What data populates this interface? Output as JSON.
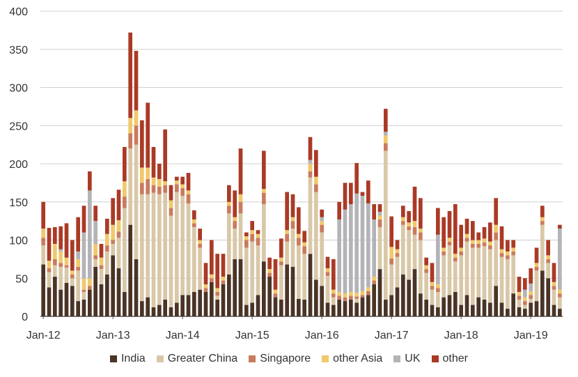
{
  "chart_data": {
    "type": "bar",
    "stacked": true,
    "ylim": [
      0,
      400
    ],
    "y_ticks": [
      "0",
      "50",
      "100",
      "150",
      "200",
      "250",
      "300",
      "350",
      "400"
    ],
    "x_tick_labels": [
      "Jan-12",
      "Jan-13",
      "Jan-14",
      "Jan-15",
      "Jan-16",
      "Jan-17",
      "Jan-18",
      "Jan-19"
    ],
    "grid": "horizontal",
    "legend_position": "bottom",
    "series": [
      {
        "name": "India",
        "color": "#4a3426"
      },
      {
        "name": "Greater China",
        "color": "#d9c8a8"
      },
      {
        "name": "Singapore",
        "color": "#c97b5f"
      },
      {
        "name": "other Asia",
        "color": "#f0c96a"
      },
      {
        "name": "UK",
        "color": "#b4b4b8"
      },
      {
        "name": "other",
        "color": "#aa3a26"
      }
    ],
    "months": [
      [
        68,
        25,
        10,
        12,
        0,
        35
      ],
      [
        38,
        20,
        5,
        10,
        0,
        43
      ],
      [
        52,
        15,
        8,
        20,
        0,
        22
      ],
      [
        35,
        30,
        5,
        15,
        3,
        30
      ],
      [
        44,
        20,
        3,
        10,
        0,
        45
      ],
      [
        40,
        10,
        5,
        5,
        0,
        40
      ],
      [
        20,
        40,
        5,
        10,
        10,
        45
      ],
      [
        22,
        10,
        3,
        15,
        60,
        35
      ],
      [
        35,
        0,
        5,
        10,
        115,
        25
      ],
      [
        65,
        10,
        5,
        15,
        30,
        20
      ],
      [
        42,
        20,
        5,
        10,
        0,
        18
      ],
      [
        55,
        30,
        8,
        15,
        0,
        20
      ],
      [
        80,
        15,
        5,
        20,
        0,
        35
      ],
      [
        63,
        40,
        8,
        15,
        0,
        40
      ],
      [
        32,
        110,
        15,
        20,
        0,
        45
      ],
      [
        120,
        100,
        20,
        20,
        0,
        112
      ],
      [
        75,
        150,
        25,
        20,
        0,
        78
      ],
      [
        20,
        140,
        15,
        20,
        0,
        62
      ],
      [
        25,
        135,
        20,
        15,
        0,
        85
      ],
      [
        12,
        150,
        10,
        10,
        0,
        40
      ],
      [
        15,
        145,
        10,
        10,
        0,
        20
      ],
      [
        22,
        140,
        10,
        5,
        0,
        68
      ],
      [
        12,
        120,
        10,
        10,
        0,
        20
      ],
      [
        18,
        145,
        10,
        5,
        0,
        5
      ],
      [
        28,
        130,
        10,
        5,
        0,
        10
      ],
      [
        28,
        120,
        12,
        5,
        0,
        23
      ],
      [
        32,
        85,
        5,
        5,
        0,
        12
      ],
      [
        35,
        55,
        5,
        5,
        0,
        15
      ],
      [
        32,
        0,
        5,
        5,
        0,
        28
      ],
      [
        45,
        0,
        5,
        5,
        0,
        45
      ],
      [
        22,
        5,
        5,
        5,
        0,
        45
      ],
      [
        42,
        0,
        5,
        5,
        0,
        30
      ],
      [
        55,
        80,
        10,
        5,
        0,
        22
      ],
      [
        75,
        40,
        10,
        5,
        0,
        35
      ],
      [
        75,
        60,
        15,
        10,
        0,
        60
      ],
      [
        15,
        75,
        10,
        5,
        0,
        5
      ],
      [
        18,
        80,
        10,
        5,
        0,
        12
      ],
      [
        28,
        65,
        10,
        5,
        0,
        5
      ],
      [
        72,
        75,
        15,
        5,
        0,
        50
      ],
      [
        52,
        0,
        5,
        5,
        0,
        15
      ],
      [
        25,
        0,
        5,
        5,
        0,
        40
      ],
      [
        22,
        45,
        5,
        5,
        0,
        25
      ],
      [
        68,
        30,
        10,
        5,
        0,
        50
      ],
      [
        65,
        50,
        10,
        5,
        0,
        30
      ],
      [
        23,
        70,
        10,
        5,
        0,
        35
      ],
      [
        22,
        60,
        10,
        5,
        0,
        15
      ],
      [
        82,
        100,
        8,
        10,
        5,
        30
      ],
      [
        48,
        115,
        10,
        10,
        0,
        35
      ],
      [
        40,
        70,
        10,
        5,
        5,
        10
      ],
      [
        18,
        35,
        5,
        5,
        0,
        15
      ],
      [
        15,
        10,
        5,
        5,
        0,
        40
      ],
      [
        22,
        0,
        5,
        5,
        95,
        23
      ],
      [
        20,
        0,
        5,
        5,
        110,
        35
      ],
      [
        22,
        0,
        5,
        5,
        115,
        28
      ],
      [
        18,
        5,
        3,
        5,
        130,
        40
      ],
      [
        25,
        0,
        3,
        5,
        125,
        5
      ],
      [
        28,
        0,
        5,
        5,
        110,
        30
      ],
      [
        42,
        0,
        5,
        5,
        75,
        20
      ],
      [
        62,
        55,
        10,
        5,
        5,
        10
      ],
      [
        22,
        195,
        10,
        10,
        5,
        30
      ],
      [
        28,
        40,
        8,
        15,
        0,
        40
      ],
      [
        38,
        40,
        5,
        5,
        0,
        12
      ],
      [
        55,
        65,
        5,
        5,
        0,
        15
      ],
      [
        48,
        65,
        5,
        5,
        0,
        15
      ],
      [
        62,
        45,
        10,
        8,
        0,
        45
      ],
      [
        30,
        70,
        10,
        5,
        0,
        40
      ],
      [
        22,
        35,
        5,
        5,
        0,
        10
      ],
      [
        15,
        20,
        5,
        5,
        0,
        25
      ],
      [
        12,
        20,
        5,
        5,
        65,
        35
      ],
      [
        25,
        55,
        5,
        5,
        0,
        40
      ],
      [
        28,
        65,
        5,
        5,
        0,
        35
      ],
      [
        32,
        40,
        5,
        5,
        0,
        65
      ],
      [
        15,
        65,
        5,
        5,
        0,
        30
      ],
      [
        28,
        70,
        5,
        5,
        0,
        20
      ],
      [
        15,
        75,
        5,
        5,
        0,
        25
      ],
      [
        25,
        65,
        5,
        5,
        0,
        10
      ],
      [
        22,
        70,
        5,
        5,
        0,
        15
      ],
      [
        18,
        70,
        5,
        5,
        0,
        25
      ],
      [
        40,
        60,
        10,
        10,
        0,
        35
      ],
      [
        18,
        60,
        5,
        5,
        0,
        30
      ],
      [
        10,
        65,
        5,
        5,
        0,
        15
      ],
      [
        30,
        50,
        5,
        5,
        0,
        10
      ],
      [
        12,
        10,
        5,
        5,
        0,
        20
      ],
      [
        10,
        5,
        5,
        5,
        10,
        15
      ],
      [
        18,
        5,
        5,
        5,
        10,
        20
      ],
      [
        20,
        40,
        5,
        5,
        0,
        20
      ],
      [
        60,
        60,
        5,
        5,
        0,
        15
      ],
      [
        50,
        20,
        5,
        5,
        0,
        20
      ],
      [
        15,
        20,
        5,
        5,
        0,
        25
      ],
      [
        10,
        15,
        5,
        5,
        80,
        5
      ]
    ]
  },
  "legend_labels": [
    "India",
    "Greater China",
    "Singapore",
    "other Asia",
    "UK",
    "other"
  ]
}
